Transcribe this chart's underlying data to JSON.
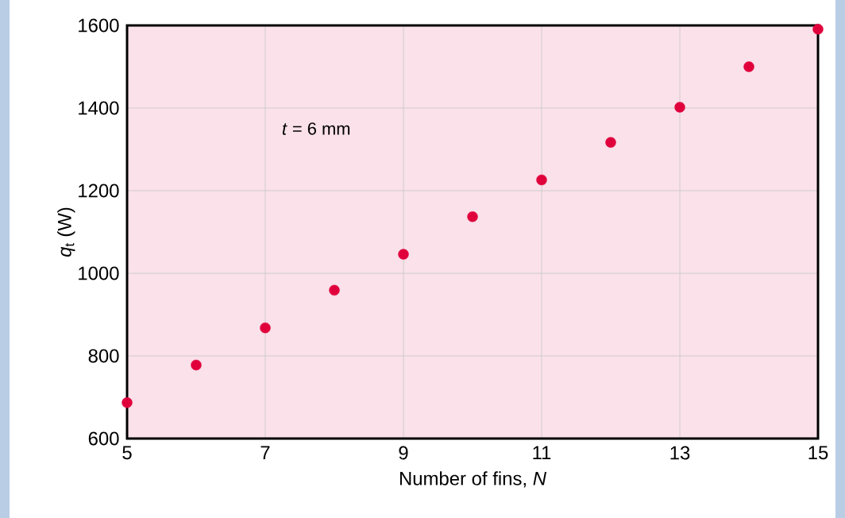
{
  "chart_data": {
    "type": "scatter",
    "xlabel": "Number of fins, *N*",
    "ylabel": "*q*$_{t}$ (W)",
    "annotations": [
      "*t* = 6 mm"
    ],
    "x": [
      5,
      6,
      7,
      8,
      9,
      10,
      11,
      12,
      13,
      14,
      15
    ],
    "values": [
      687,
      778,
      868,
      959,
      1046,
      1137,
      1226,
      1317,
      1402,
      1500,
      1591
    ],
    "color": "#e0003c",
    "marker": "circle",
    "grid": true,
    "xlim": [
      5,
      15
    ],
    "ylim": [
      600,
      1600
    ],
    "xticks": [
      5,
      7,
      9,
      11,
      13,
      15
    ],
    "yticks": [
      600,
      800,
      1000,
      1200,
      1400,
      1600
    ]
  }
}
